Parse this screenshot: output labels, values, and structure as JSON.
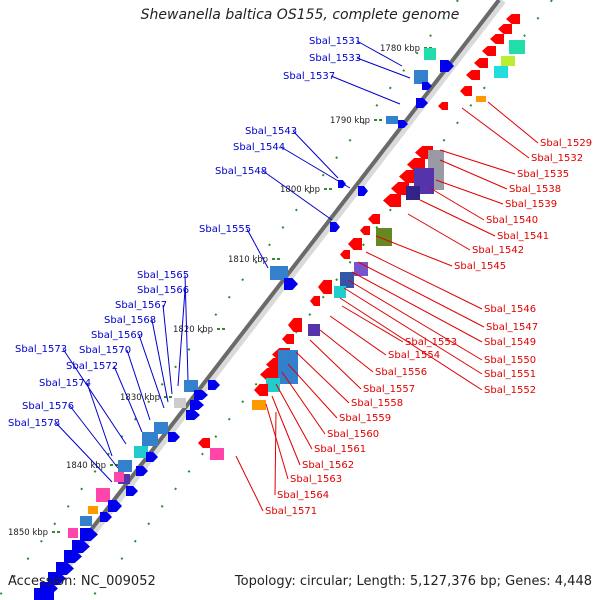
{
  "title": "Shewanella baltica OS155, complete genome",
  "accession": "Accession: NC_009052",
  "topology": "Topology: circular; Length: 5,127,376 bp; Genes: 4,448",
  "colors": {
    "left_label": "#0000cc",
    "right_label": "#e00000",
    "backbone": "#707070",
    "tick": "#2e8b2e"
  },
  "ticks": [
    "1780 kbp",
    "1790 kbp",
    "1800 kbp",
    "1810 kbp",
    "1820 kbp",
    "1830 kbp",
    "1840 kbp",
    "1850 kbp"
  ],
  "left_labels": [
    "Sbal_1531",
    "Sbal_1533",
    "Sbal_1537",
    "Sbal_1543",
    "Sbal_1544",
    "Sbal_1548",
    "Sbal_1555",
    "Sbal_1565",
    "Sbal_1566",
    "Sbal_1567",
    "Sbal_1568",
    "Sbal_1569",
    "Sbal_1570",
    "Sbal_1572",
    "Sbal_1573",
    "Sbal_1574",
    "Sbal_1576",
    "Sbal_1578"
  ],
  "right_labels": [
    "Sbal_1529",
    "Sbal_1532",
    "Sbal_1535",
    "Sbal_1538",
    "Sbal_1539",
    "Sbal_1540",
    "Sbal_1541",
    "Sbal_1542",
    "Sbal_1545",
    "Sbal_1546",
    "Sbal_1547",
    "Sbal_1549",
    "Sbal_1550",
    "Sbal_1551",
    "Sbal_1552",
    "Sbal_1553",
    "Sbal_1554",
    "Sbal_1556",
    "Sbal_1557",
    "Sbal_1558",
    "Sbal_1559",
    "Sbal_1560",
    "Sbal_1561",
    "Sbal_1562",
    "Sbal_1563",
    "Sbal_1564",
    "Sbal_1571"
  ]
}
